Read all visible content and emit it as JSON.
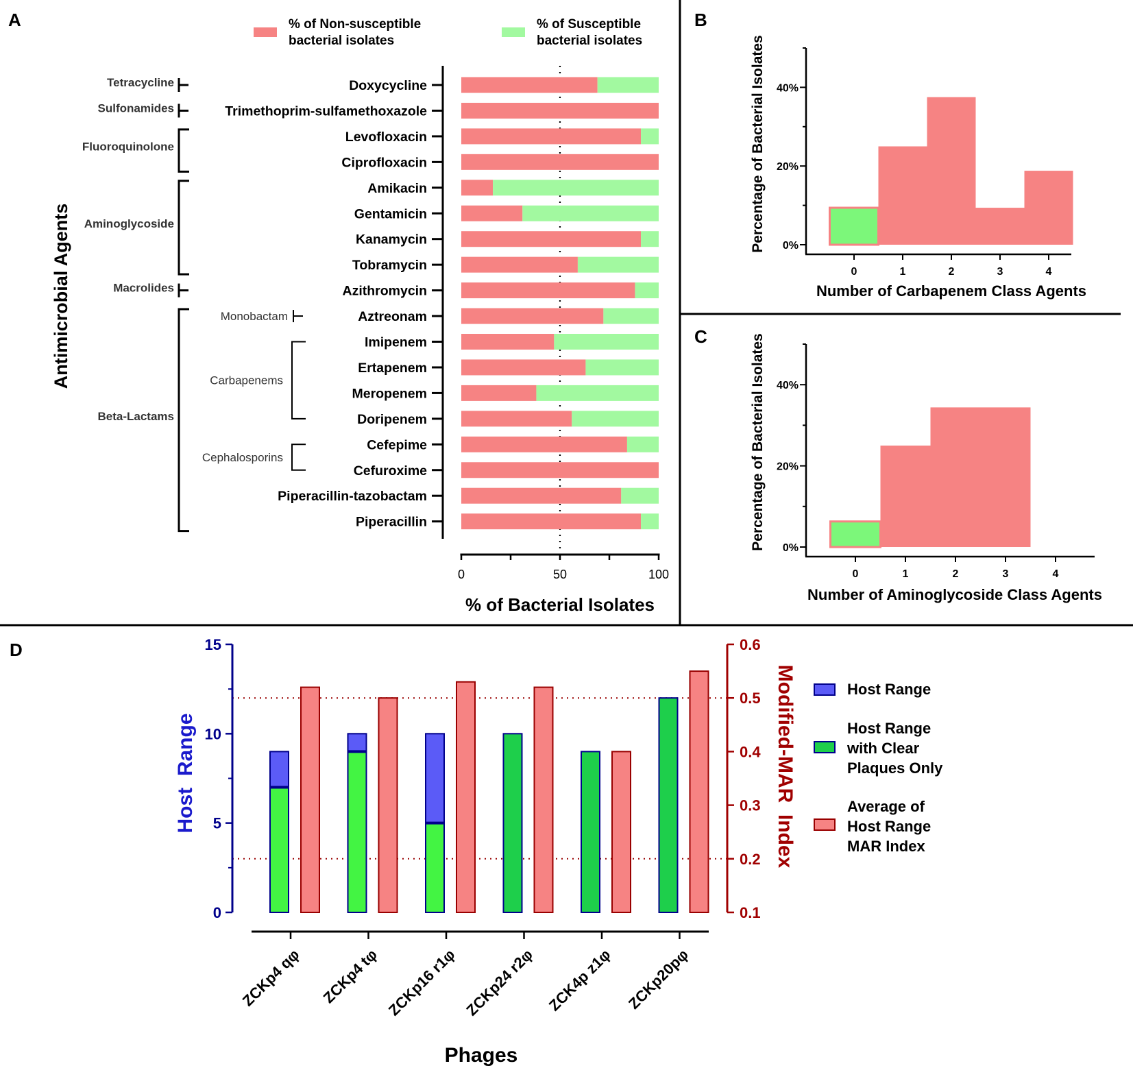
{
  "colors": {
    "nonsusceptible": "#F68383",
    "susceptible": "#A2F9A0",
    "hist_susceptible": "#7CF77A",
    "host_range": "#5B5BF7",
    "clear_plaques_light": "#43F443",
    "clear_plaques_dark": "#1ECF4B",
    "mar": "#F68383",
    "mar_stroke": "#990000",
    "host_axis": "#00008B",
    "mar_axis": "#A00000"
  },
  "panel_labels": [
    "A",
    "B",
    "C",
    "D"
  ],
  "chart_data": [
    {
      "type": "bar",
      "orientation": "horizontal-stacked",
      "panel": "A",
      "ylabel": "Antimicrobial Agents",
      "xlabel": "% of Bacterial Isolates",
      "xlim": [
        0,
        100
      ],
      "xticks": [
        "0",
        "50",
        "100"
      ],
      "reference_line": 50,
      "legend": [
        "% of Non-susceptible bacterial isolates",
        "% of Susceptible bacterial isolates"
      ],
      "legend_lines": [
        [
          "% of Non-susceptible",
          "bacterial isolates"
        ],
        [
          "% of Susceptible",
          "bacterial isolates"
        ]
      ],
      "categories": [
        "Doxycycline",
        "Trimethoprim-sulfamethoxazole",
        "Levofloxacin",
        "Ciprofloxacin",
        "Amikacin",
        "Gentamicin",
        "Kanamycin",
        "Tobramycin",
        "Azithromycin",
        "Aztreonam",
        "Imipenem",
        "Ertapenem",
        "Meropenem",
        "Doripenem",
        "Cefepime",
        "Cefuroxime",
        "Piperacillin-tazobactam",
        "Piperacillin"
      ],
      "series": [
        {
          "name": "% of Non-susceptible bacterial isolates",
          "values": [
            69,
            100,
            91,
            100,
            16,
            31,
            91,
            59,
            88,
            72,
            47,
            63,
            38,
            56,
            84,
            100,
            81,
            91
          ]
        },
        {
          "name": "% of Susceptible bacterial isolates",
          "values": [
            31,
            0,
            9,
            0,
            84,
            69,
            9,
            41,
            12,
            28,
            53,
            37,
            62,
            44,
            16,
            0,
            19,
            9
          ]
        }
      ],
      "class_groups": [
        {
          "label": "Tetracycline",
          "first": 0,
          "last": 0
        },
        {
          "label": "Sulfonamides",
          "first": 1,
          "last": 1
        },
        {
          "label": "Fluoroquinolone",
          "first": 2,
          "last": 3
        },
        {
          "label": "Aminoglycoside",
          "first": 4,
          "last": 7
        },
        {
          "label": "Macrolides",
          "first": 8,
          "last": 8
        },
        {
          "label": "Beta-Lactams",
          "first": 9,
          "last": 17
        }
      ],
      "subclass_groups": [
        {
          "label": "Monobactam",
          "first": 9,
          "last": 9
        },
        {
          "label": "Carbapenems",
          "first": 10,
          "last": 13
        },
        {
          "label": "Cephalosporins",
          "first": 14,
          "last": 15
        }
      ]
    },
    {
      "type": "bar",
      "panel": "B",
      "title": "",
      "xlabel": "Number of Carbapenem Class Agents",
      "ylabel": "Percentage of Bacterial Isolates",
      "categories": [
        "0",
        "1",
        "2",
        "3",
        "4"
      ],
      "values": [
        9.4,
        25,
        37.5,
        9.4,
        18.8
      ],
      "susceptible_category": "0",
      "ylim": [
        0,
        50
      ],
      "yticks": [
        "0%",
        "20%",
        "40%"
      ]
    },
    {
      "type": "bar",
      "panel": "C",
      "title": "",
      "xlabel": "Number of Aminoglycoside Class Agents",
      "ylabel": "Percentage of Bacterial Isolates",
      "categories": [
        "0",
        "1",
        "2",
        "3",
        "4"
      ],
      "values": [
        6.3,
        25,
        34.4,
        34.4,
        0
      ],
      "susceptible_category": "0",
      "ylim": [
        0,
        50
      ],
      "yticks": [
        "0%",
        "20%",
        "40%"
      ]
    },
    {
      "type": "bar",
      "panel": "D",
      "xlabel": "Phages",
      "ylabel": "Host  Range",
      "y2label": "Modified-MAR  Index",
      "ylim": [
        0,
        15
      ],
      "yticks": [
        "0",
        "5",
        "10",
        "15"
      ],
      "y2lim": [
        0.1,
        0.6
      ],
      "y2ticks": [
        "0.1",
        "0.2",
        "0.3",
        "0.4",
        "0.5",
        "0.6"
      ],
      "reference_lines_y2": [
        0.2,
        0.5
      ],
      "categories": [
        "ZCKp4 qφ",
        "ZCKp4 tφ",
        "ZCKp16 r1φ",
        "ZCKp24 r2φ",
        "ZCK4p z1φ",
        "ZCKp20pφ"
      ],
      "legend": [
        {
          "name": "Host Range",
          "lines": [
            "Host Range"
          ]
        },
        {
          "name": "Host Range with Clear Plaques Only",
          "lines": [
            "Host Range",
            "with Clear",
            "Plaques Only"
          ]
        },
        {
          "name": "Average of Host Range MAR Index",
          "lines": [
            "Average of",
            "Host Range",
            "MAR Index"
          ]
        }
      ],
      "series": [
        {
          "name": "Host Range",
          "axis": "left",
          "values": [
            9,
            10,
            10,
            10,
            9,
            12
          ]
        },
        {
          "name": "Host Range with Clear Plaques Only",
          "axis": "left",
          "values": [
            7,
            9,
            5,
            10,
            9,
            12
          ]
        },
        {
          "name": "Average of Host Range MAR Index",
          "axis": "right",
          "values": [
            0.52,
            0.5,
            0.53,
            0.52,
            0.4,
            0.55
          ]
        }
      ]
    }
  ]
}
